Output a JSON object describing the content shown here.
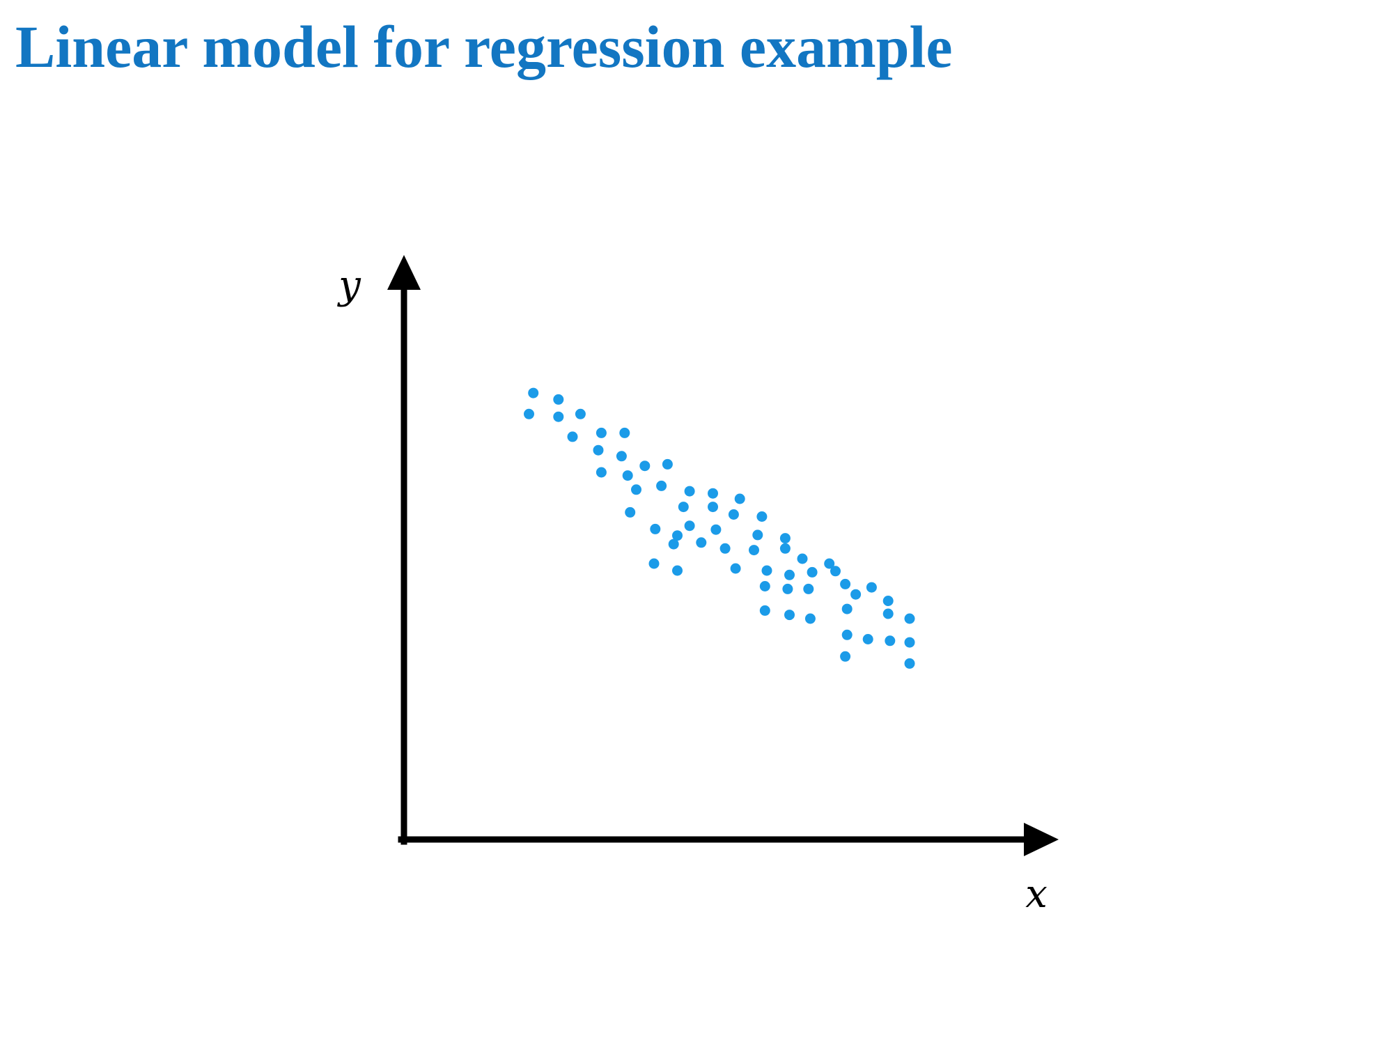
{
  "slide": {
    "title": "Linear model for regression example",
    "title_color": "#1276c2"
  },
  "chart_data": {
    "type": "scatter",
    "title": "Linear model for regression example",
    "xlabel": "x",
    "ylabel": "y",
    "xlim": [
      0,
      100
    ],
    "ylim": [
      0,
      100
    ],
    "grid": false,
    "legend": "none",
    "point_color": "#1b9be8",
    "axis_color": "#000000",
    "series": [
      {
        "x": [
          21.1,
          25.2,
          20.4,
          25.2,
          28.8,
          27.5,
          32.2,
          36.0,
          31.7,
          35.5,
          39.3,
          43.0,
          32.2,
          36.5,
          37.9,
          42.0,
          46.6,
          50.4,
          54.8,
          45.6,
          50.4,
          53.8,
          58.4,
          36.9,
          41.0,
          44.6,
          46.6,
          50.9,
          57.7,
          62.2,
          44.0,
          48.5,
          52.4,
          57.1,
          62.2,
          65.0,
          69.4,
          40.8,
          44.6,
          54.1,
          59.2,
          62.9,
          66.6,
          70.4,
          58.9,
          62.6,
          66.0,
          72.0,
          76.3,
          73.7,
          79.0,
          58.9,
          62.9,
          66.3,
          72.3,
          79.0,
          82.5,
          72.3,
          75.7,
          72.0,
          79.3,
          82.5,
          82.5
        ],
        "y": [
          82.7,
          81.5,
          78.8,
          78.3,
          78.8,
          74.6,
          75.3,
          75.3,
          72.1,
          71.0,
          69.2,
          69.5,
          68.0,
          67.4,
          64.8,
          65.5,
          64.5,
          64.1,
          63.1,
          61.6,
          61.6,
          60.2,
          59.8,
          60.6,
          57.5,
          56.3,
          58.1,
          57.4,
          56.4,
          55.8,
          54.7,
          55.0,
          53.9,
          53.6,
          53.9,
          52.0,
          51.1,
          51.1,
          49.8,
          50.2,
          49.8,
          49.0,
          49.5,
          49.7,
          46.9,
          46.4,
          46.4,
          47.3,
          46.7,
          45.4,
          44.2,
          42.4,
          41.6,
          40.9,
          42.7,
          41.8,
          40.9,
          37.9,
          37.1,
          33.9,
          36.8,
          36.5,
          32.6
        ]
      }
    ]
  }
}
